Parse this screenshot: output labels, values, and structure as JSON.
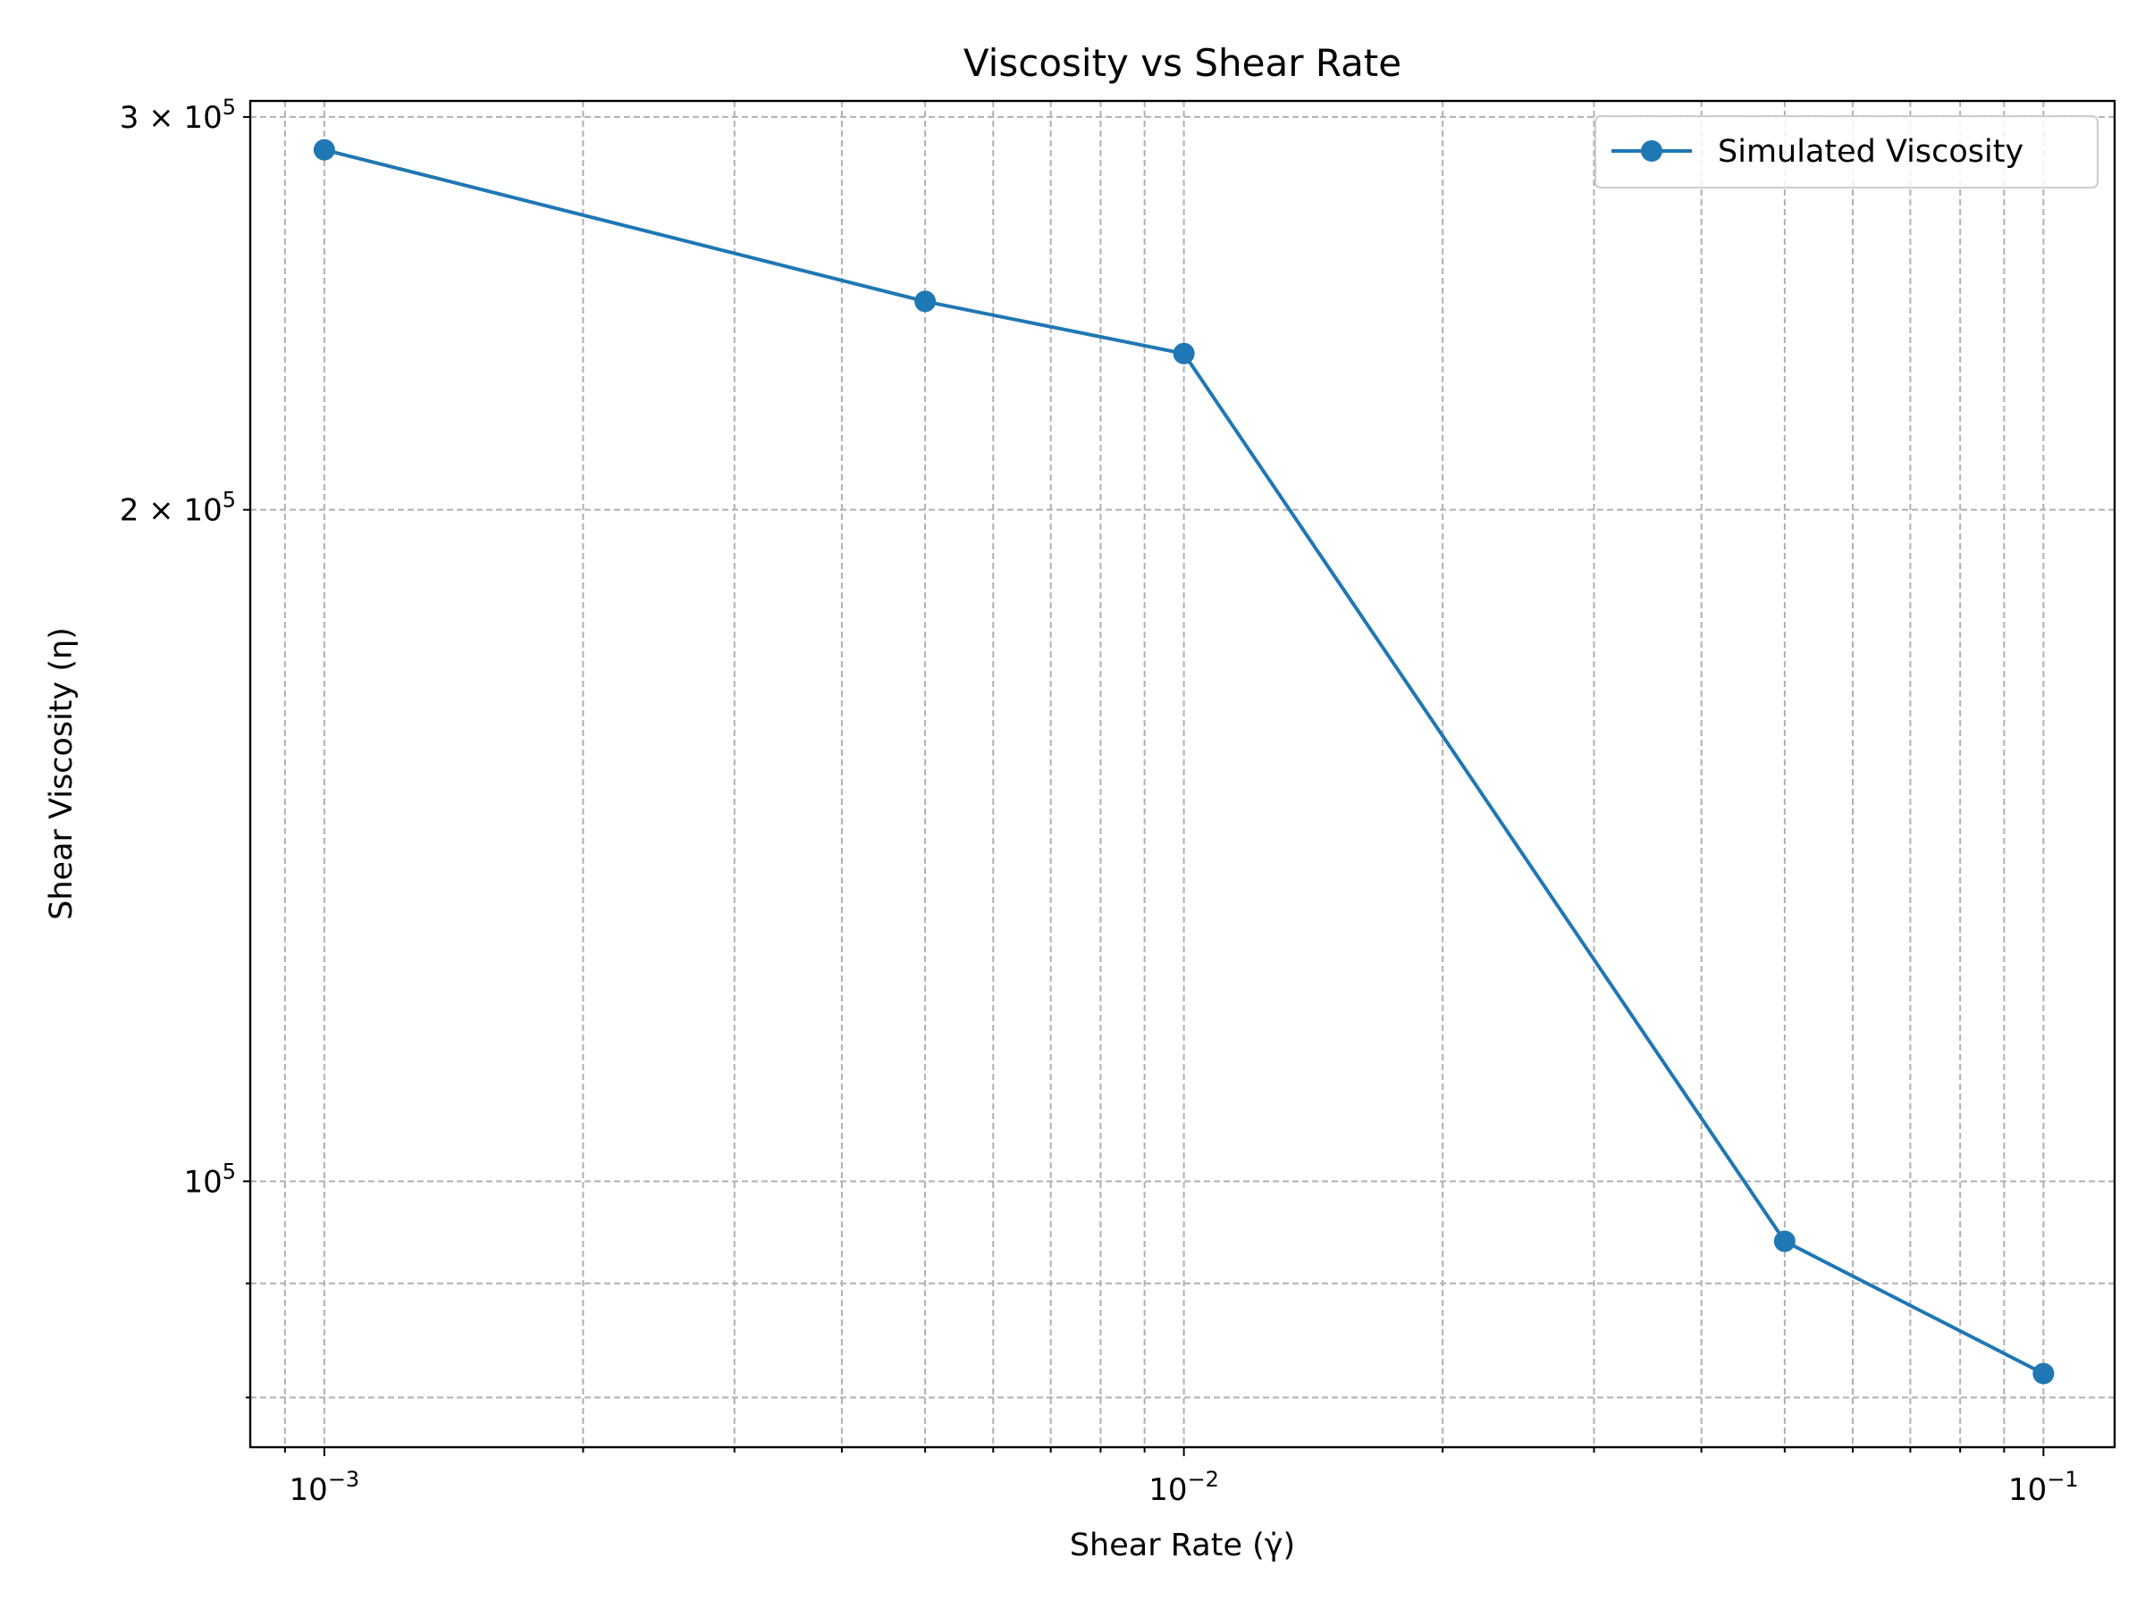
{
  "chart_data": {
    "type": "line",
    "title": "Viscosity vs Shear Rate",
    "xlabel": "Shear Rate (γ̇)",
    "ylabel": "Shear Viscosity (η)",
    "xscale": "log",
    "yscale": "log",
    "xlim": [
      0.00082,
      0.121
    ],
    "ylim": [
      76000,
      305000
    ],
    "grid": true,
    "legend_position": "top-right",
    "x_major_ticks": [
      {
        "value": 0.001,
        "base": "10",
        "exp": "−3"
      },
      {
        "value": 0.01,
        "base": "10",
        "exp": "−2"
      },
      {
        "value": 0.1,
        "base": "10",
        "exp": "−1"
      }
    ],
    "y_tick_labels": [
      {
        "value": 300000,
        "mantissa": "3",
        "base": "10",
        "exp": "5"
      },
      {
        "value": 200000,
        "mantissa": "2",
        "base": "10",
        "exp": "5"
      },
      {
        "value": 100000,
        "mantissa": "",
        "base": "10",
        "exp": "5"
      }
    ],
    "y_unlabeled_minor_ticks": [
      90000,
      80000
    ],
    "series": [
      {
        "name": "Simulated Viscosity",
        "color": "#1f77b4",
        "marker": "circle",
        "x": [
          0.001,
          0.005,
          0.01,
          0.05,
          0.1
        ],
        "y": [
          290000,
          248000,
          235000,
          94000,
          82000
        ]
      }
    ]
  }
}
